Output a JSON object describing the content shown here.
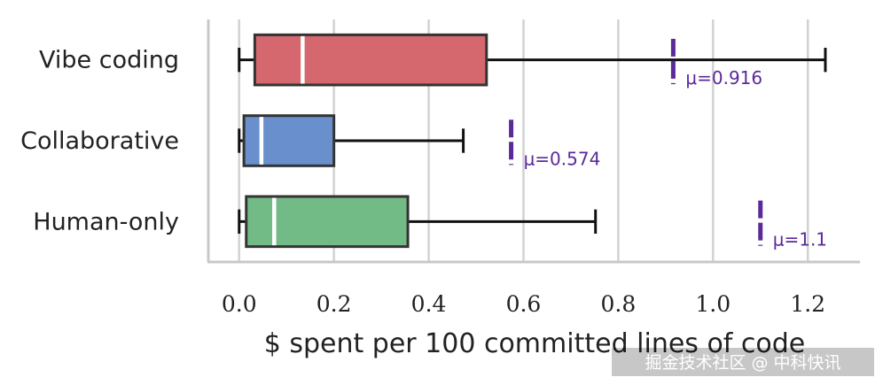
{
  "chart_data": {
    "type": "boxplot",
    "orientation": "horizontal",
    "xlabel": "$ spent per 100 committed lines of code",
    "xlim": [
      -0.065,
      1.31
    ],
    "x_ticks": [
      0.0,
      0.2,
      0.4,
      0.6,
      0.8,
      1.0,
      1.2
    ],
    "x_tick_labels": [
      "0.0",
      "0.2",
      "0.4",
      "0.6",
      "0.8",
      "1.0",
      "1.2"
    ],
    "grid": true,
    "mean_color": "#5b2a9a",
    "series": [
      {
        "name": "Vibe coding",
        "color": "#d4686e",
        "whisker_low": 0.0,
        "q1": 0.033,
        "median": 0.134,
        "q3": 0.522,
        "whisker_high": 1.237,
        "mean": 0.916,
        "mean_label": "μ=0.916"
      },
      {
        "name": "Collaborative",
        "color": "#6a8fcd",
        "whisker_low": 0.0,
        "q1": 0.01,
        "median": 0.047,
        "q3": 0.2,
        "whisker_high": 0.473,
        "mean": 0.574,
        "mean_label": "μ=0.574"
      },
      {
        "name": "Human-only",
        "color": "#72bb86",
        "whisker_low": 0.0,
        "q1": 0.015,
        "median": 0.074,
        "q3": 0.356,
        "whisker_high": 0.752,
        "mean": 1.1,
        "mean_label": "μ=1.1"
      }
    ]
  },
  "watermark": "掘金技术社区 @ 中科快讯"
}
